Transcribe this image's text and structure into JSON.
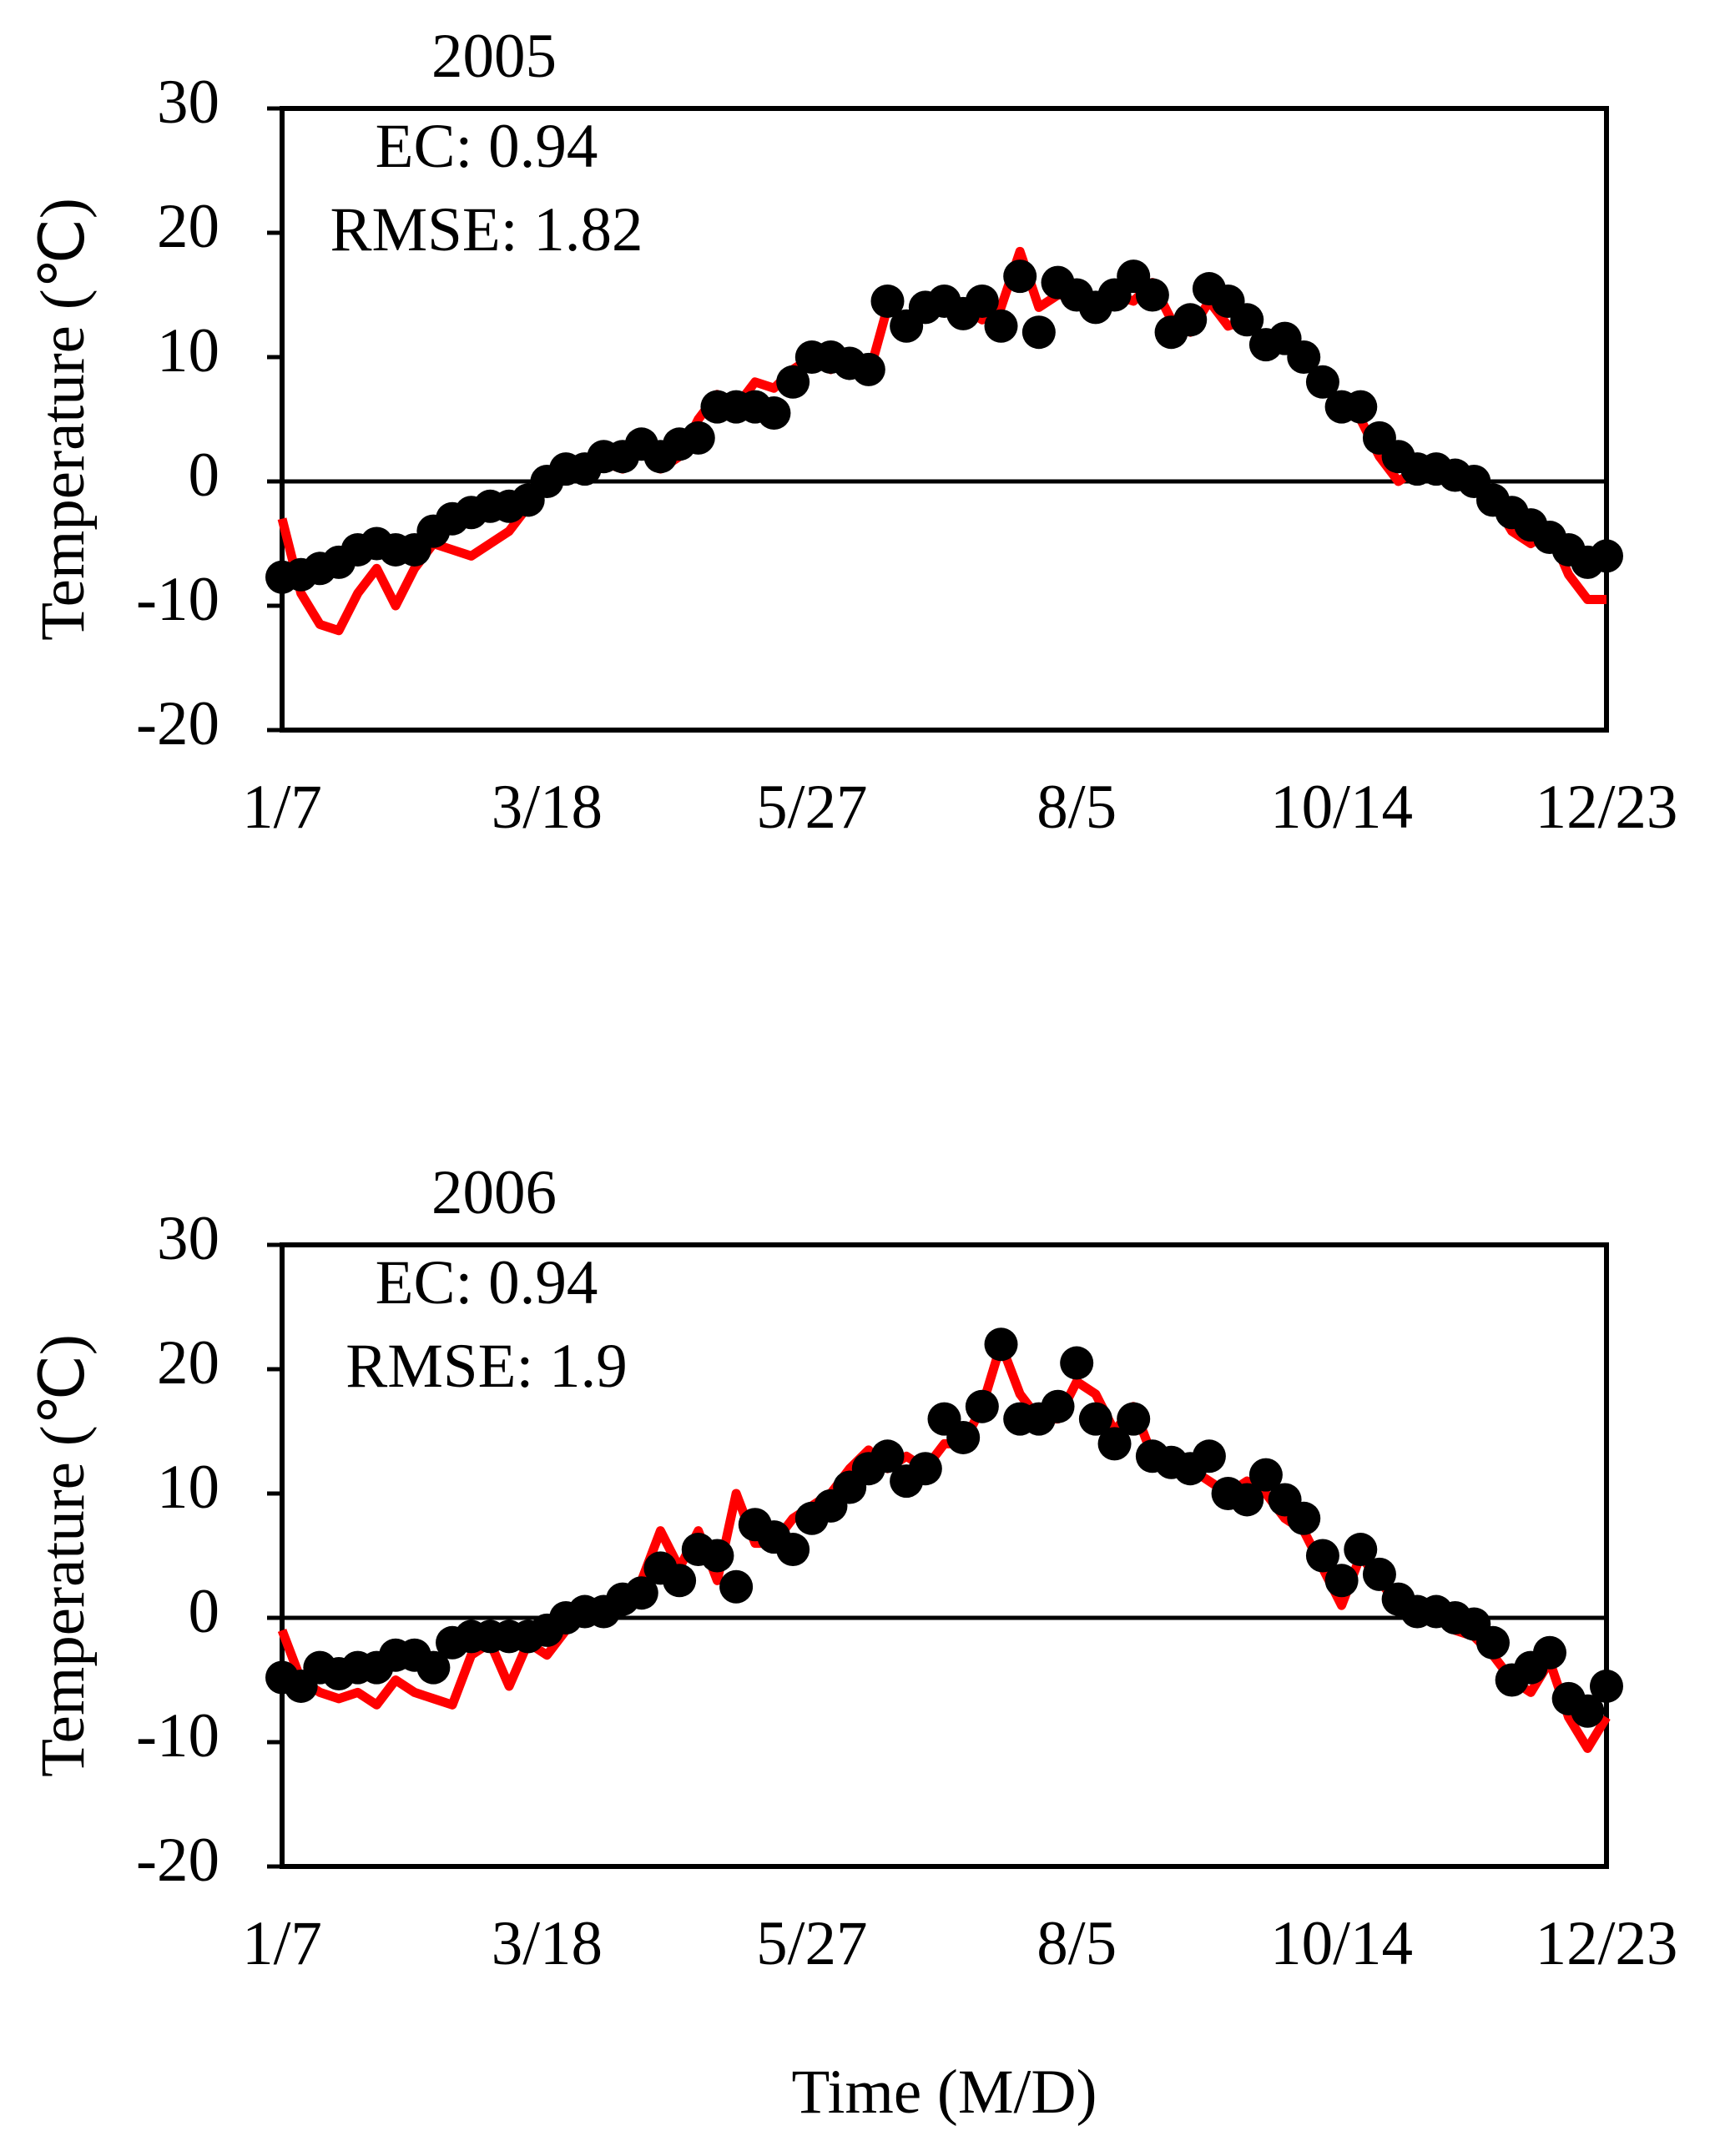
{
  "chart_data": [
    {
      "type": "line",
      "title": "2005",
      "annotations": [
        "EC: 0.94",
        "RMSE: 1.82"
      ],
      "ylabel": "Temperature (℃)",
      "x": [
        7,
        12,
        17,
        22,
        27,
        32,
        37,
        42,
        47,
        52,
        57,
        62,
        67,
        72,
        77,
        82,
        87,
        92,
        97,
        102,
        107,
        112,
        117,
        122,
        127,
        132,
        137,
        142,
        147,
        152,
        157,
        162,
        167,
        172,
        177,
        182,
        187,
        192,
        197,
        202,
        207,
        212,
        217,
        222,
        227,
        232,
        237,
        242,
        247,
        252,
        257,
        262,
        267,
        272,
        277,
        282,
        287,
        292,
        297,
        302,
        307,
        312,
        317,
        322,
        327,
        332,
        337,
        342,
        347,
        352,
        357
      ],
      "series": [
        {
          "color": "#ff0000",
          "style": "line",
          "values": [
            -3,
            -9,
            -11.5,
            -12,
            -9,
            -7,
            -10,
            -7,
            -5,
            -5.5,
            -6,
            -5,
            -4,
            -2,
            0,
            0.5,
            1,
            1.5,
            1,
            3,
            1,
            2,
            5,
            7,
            6,
            8,
            7.5,
            9,
            10,
            9,
            10,
            8.5,
            14,
            13,
            14,
            15,
            14,
            13,
            14,
            18.5,
            14,
            15,
            15,
            13.5,
            15,
            14.5,
            16,
            13,
            12,
            14.5,
            12.5,
            13,
            11,
            11.5,
            10,
            8,
            6,
            5,
            2,
            0,
            1,
            1,
            0,
            -0.5,
            -1.5,
            -4,
            -5,
            -4,
            -7.5,
            -9.5,
            -9.5
          ]
        },
        {
          "color": "#000000",
          "style": "points",
          "values": [
            -7.7,
            -7.5,
            -7,
            -6.5,
            -5.5,
            -5,
            -5.5,
            -5.5,
            -4,
            -3,
            -2.5,
            -2,
            -2,
            -1.5,
            0,
            1,
            1,
            2,
            2,
            3,
            2,
            3,
            3.5,
            6,
            6,
            6,
            5.5,
            8,
            10,
            10,
            9.5,
            9,
            14.5,
            12.5,
            14,
            14.5,
            13.5,
            14.5,
            12.5,
            16.5,
            12,
            16,
            15,
            14,
            15,
            16.5,
            15,
            12,
            13,
            15.5,
            14.5,
            13,
            11,
            11.5,
            10,
            8,
            6,
            6,
            3.5,
            2,
            1,
            1,
            0.5,
            0,
            -1.5,
            -2.5,
            -3.5,
            -4.5,
            -5.5,
            -6.5,
            -6
          ]
        }
      ],
      "hline": 0,
      "xlim": [
        7,
        357
      ],
      "xticks": [
        {
          "value": 7,
          "label": "1/7"
        },
        {
          "value": 77,
          "label": "3/18"
        },
        {
          "value": 147,
          "label": "5/27"
        },
        {
          "value": 217,
          "label": "8/5"
        },
        {
          "value": 287,
          "label": "10/14"
        },
        {
          "value": 357,
          "label": "12/23"
        }
      ],
      "ylim": [
        -20,
        30
      ],
      "yticks": [
        -20,
        -10,
        0,
        10,
        20,
        30
      ]
    },
    {
      "type": "line",
      "title": "2006",
      "annotations": [
        "EC: 0.94",
        "RMSE: 1.9"
      ],
      "ylabel": "Temperature (℃)",
      "xlabel": "Time (M/D)",
      "x": [
        7,
        12,
        17,
        22,
        27,
        32,
        37,
        42,
        47,
        52,
        57,
        62,
        67,
        72,
        77,
        82,
        87,
        92,
        97,
        102,
        107,
        112,
        117,
        122,
        127,
        132,
        137,
        142,
        147,
        152,
        157,
        162,
        167,
        172,
        177,
        182,
        187,
        192,
        197,
        202,
        207,
        212,
        217,
        222,
        227,
        232,
        237,
        242,
        247,
        252,
        257,
        262,
        267,
        272,
        277,
        282,
        287,
        292,
        297,
        302,
        307,
        312,
        317,
        322,
        327,
        332,
        337,
        342,
        347,
        352,
        357
      ],
      "series": [
        {
          "color": "#ff0000",
          "style": "line",
          "values": [
            -1,
            -5,
            -6,
            -6.5,
            -6,
            -7,
            -5,
            -6,
            -6.5,
            -7,
            -3,
            -2,
            -5.5,
            -2,
            -3,
            -1,
            0,
            1,
            2,
            3,
            7,
            4,
            7,
            3,
            10,
            6,
            6,
            8,
            9,
            10,
            12,
            13.5,
            12,
            13,
            12,
            14,
            14,
            17,
            22,
            18,
            16,
            16,
            19,
            18,
            15,
            17,
            13,
            13,
            12,
            11,
            10,
            11,
            10,
            8,
            7,
            4,
            1,
            5,
            3,
            1,
            1,
            0,
            -1,
            -1.5,
            -3,
            -5,
            -6,
            -3.5,
            -8,
            -10.5,
            -8
          ]
        },
        {
          "color": "#000000",
          "style": "points",
          "values": [
            -4.8,
            -5.5,
            -4,
            -4.5,
            -4,
            -4,
            -3,
            -3,
            -4,
            -2,
            -1.5,
            -1.5,
            -1.5,
            -1.5,
            -1,
            0,
            0.5,
            0.5,
            1.5,
            2,
            4,
            3,
            5.5,
            5,
            2.5,
            7.5,
            6.5,
            5.5,
            8,
            9,
            10.5,
            12,
            13,
            11,
            12,
            16,
            14.5,
            17,
            22,
            16,
            16,
            17,
            20.5,
            16,
            14,
            16,
            13,
            12.5,
            12,
            13,
            10,
            9.5,
            11.5,
            9.5,
            8,
            5,
            3,
            5.5,
            3.5,
            1.5,
            0.5,
            0.5,
            0,
            -0.5,
            -2,
            -5,
            -4,
            -2.8,
            -6.5,
            -7.5,
            -5.5
          ]
        }
      ],
      "hline": 0,
      "xlim": [
        7,
        357
      ],
      "xticks": [
        {
          "value": 7,
          "label": "1/7"
        },
        {
          "value": 77,
          "label": "3/18"
        },
        {
          "value": 147,
          "label": "5/27"
        },
        {
          "value": 217,
          "label": "8/5"
        },
        {
          "value": 287,
          "label": "10/14"
        },
        {
          "value": 357,
          "label": "12/23"
        }
      ],
      "ylim": [
        -20,
        30
      ],
      "yticks": [
        -20,
        -10,
        0,
        10,
        20,
        30
      ]
    }
  ]
}
